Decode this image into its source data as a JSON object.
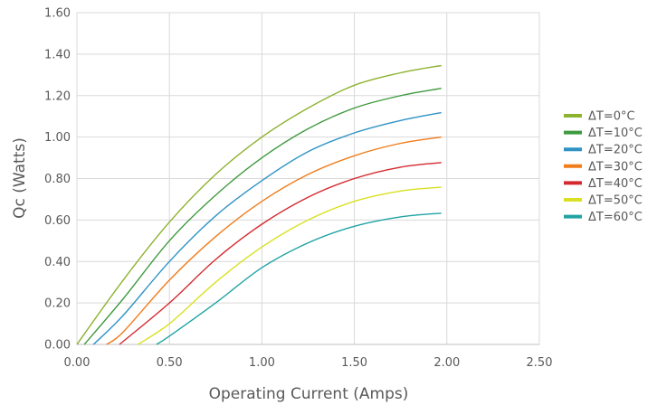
{
  "chart_data": {
    "type": "line",
    "title": "",
    "xlabel": "Operating Current (Amps)",
    "ylabel": "Qc (Watts)",
    "xlim": [
      0,
      2.5
    ],
    "ylim": [
      0,
      1.6
    ],
    "xticks": [
      "0.00",
      "0.50",
      "1.00",
      "1.50",
      "2.00",
      "2.50"
    ],
    "yticks": [
      "0.00",
      "0.20",
      "0.40",
      "0.60",
      "0.80",
      "1.00",
      "1.20",
      "1.40",
      "1.60"
    ],
    "grid": true,
    "legend_position": "right",
    "series": [
      {
        "name": "ΔT=0°C",
        "color": "#8db22e",
        "x": [
          0,
          0.25,
          0.5,
          0.75,
          1.0,
          1.25,
          1.5,
          1.75,
          1.97
        ],
        "y": [
          0,
          0.31,
          0.59,
          0.82,
          1.0,
          1.14,
          1.25,
          1.31,
          1.345
        ]
      },
      {
        "name": "ΔT=10°C",
        "color": "#3f9a3f",
        "x": [
          0.04,
          0.25,
          0.5,
          0.75,
          1.0,
          1.25,
          1.5,
          1.75,
          1.97
        ],
        "y": [
          0,
          0.22,
          0.5,
          0.72,
          0.9,
          1.04,
          1.14,
          1.2,
          1.235
        ]
      },
      {
        "name": "ΔT=20°C",
        "color": "#2f93c6",
        "x": [
          0.09,
          0.25,
          0.5,
          0.75,
          1.0,
          1.25,
          1.5,
          1.75,
          1.97
        ],
        "y": [
          0,
          0.14,
          0.4,
          0.62,
          0.79,
          0.93,
          1.02,
          1.08,
          1.118
        ]
      },
      {
        "name": "ΔT=30°C",
        "color": "#f07c1a",
        "x": [
          0.16,
          0.25,
          0.5,
          0.75,
          1.0,
          1.25,
          1.5,
          1.75,
          1.97
        ],
        "y": [
          0,
          0.06,
          0.31,
          0.52,
          0.69,
          0.82,
          0.91,
          0.97,
          1.0
        ]
      },
      {
        "name": "ΔT=40°C",
        "color": "#d42a2f",
        "x": [
          0.23,
          0.5,
          0.75,
          1.0,
          1.25,
          1.5,
          1.75,
          1.97
        ],
        "y": [
          0,
          0.2,
          0.41,
          0.58,
          0.71,
          0.8,
          0.855,
          0.877
        ]
      },
      {
        "name": "ΔT=50°C",
        "color": "#d9e021",
        "x": [
          0.33,
          0.5,
          0.75,
          1.0,
          1.25,
          1.5,
          1.75,
          1.97
        ],
        "y": [
          0,
          0.1,
          0.3,
          0.47,
          0.6,
          0.69,
          0.74,
          0.758
        ]
      },
      {
        "name": "ΔT=60°C",
        "color": "#21a3a3",
        "x": [
          0.43,
          0.5,
          0.75,
          1.0,
          1.25,
          1.5,
          1.75,
          1.97
        ],
        "y": [
          0,
          0.04,
          0.2,
          0.37,
          0.49,
          0.57,
          0.615,
          0.633
        ]
      }
    ]
  }
}
